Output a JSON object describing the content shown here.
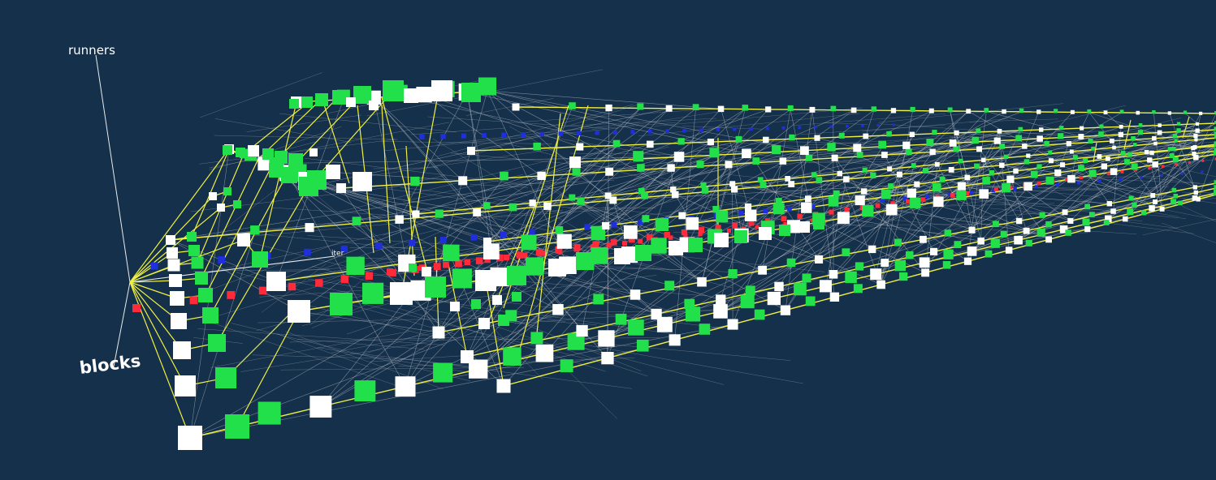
{
  "scene": {
    "background": "#15304a",
    "view": "3d-graph-perspective"
  },
  "axes": {
    "runners_label": "runners",
    "blocks_label": "blocks",
    "iter_label": "iter"
  },
  "palette": {
    "block_node": "#ffffff",
    "runner_node": "#22e04a",
    "iter_node_blue": "#1f2fe0",
    "iter_node_red": "#ff2a3a",
    "primary_edge": "#f0f040",
    "secondary_edge": "#c8ccd4",
    "axis_line": "#ffffff"
  },
  "legend_counts": {
    "node_types": [
      "block",
      "runner",
      "iter"
    ]
  }
}
